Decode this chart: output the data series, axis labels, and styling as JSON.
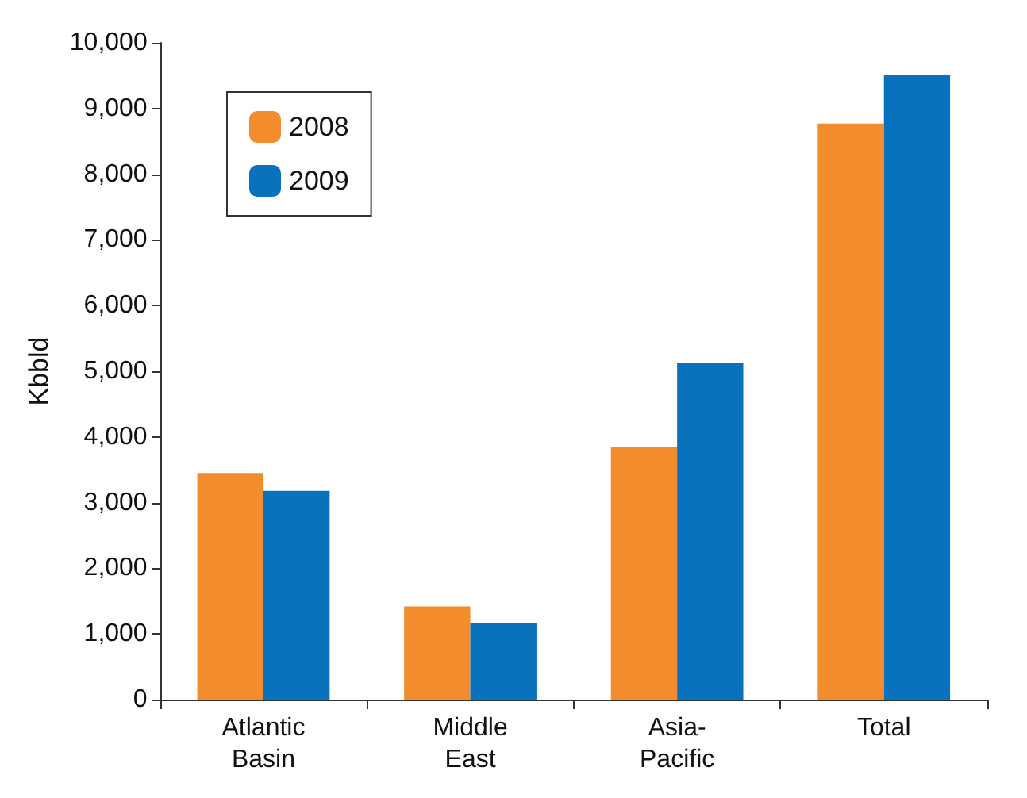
{
  "chart_data": {
    "type": "bar",
    "ylabel": "Kbbld",
    "categories": [
      "Atlantic\nBasin",
      "Middle\nEast",
      "Asia-\nPacific",
      "Total"
    ],
    "series": [
      {
        "name": "2008",
        "color": "#f28c2c",
        "values": [
          3450,
          1420,
          3840,
          8770
        ]
      },
      {
        "name": "2009",
        "color": "#0872bf",
        "values": [
          3180,
          1160,
          5120,
          9510
        ]
      }
    ],
    "ylim": [
      0,
      10000
    ],
    "yticks": [
      0,
      {
        "value": 1000,
        "label": "1,000"
      },
      {
        "value": 2000,
        "label": "2,000"
      },
      {
        "value": 3000,
        "label": "3,000"
      },
      {
        "value": 4000,
        "label": "4,000"
      },
      {
        "value": 5000,
        "label": "5,000"
      },
      {
        "value": 6000,
        "label": "6,000"
      },
      {
        "value": 7000,
        "label": "7,000"
      },
      {
        "value": 8000,
        "label": "8,000"
      },
      {
        "value": 9000,
        "label": "9,000"
      },
      {
        "value": 10000,
        "label": "10,000"
      }
    ],
    "grid": false,
    "legend": "top left"
  }
}
